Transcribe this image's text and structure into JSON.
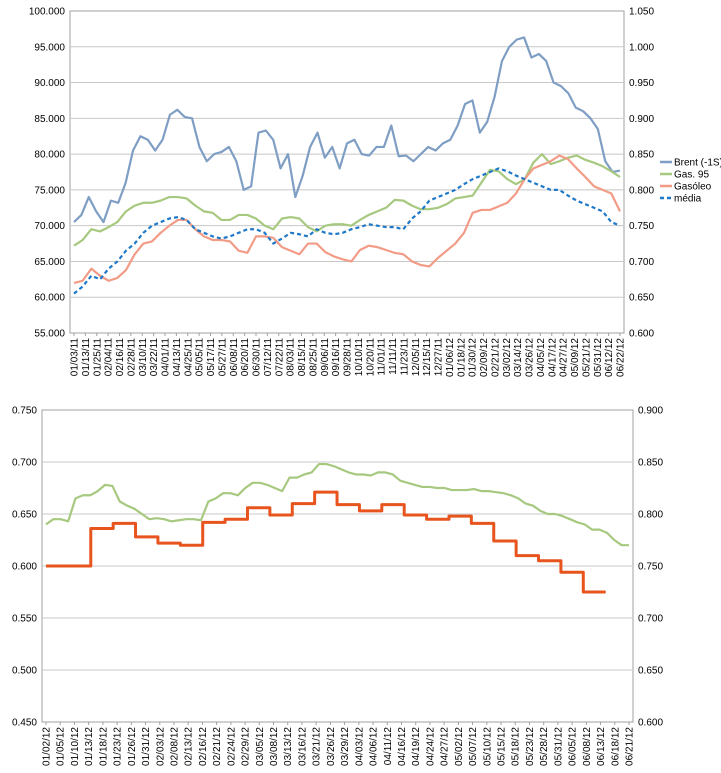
{
  "chart_data": [
    {
      "type": "line",
      "y_left_ticks": [
        "55.000",
        "60.000",
        "65.000",
        "70.000",
        "75.000",
        "80.000",
        "85.000",
        "90.000",
        "95.000",
        "100.000"
      ],
      "y_right_ticks": [
        "0.600",
        "0.650",
        "0.700",
        "0.750",
        "0.800",
        "0.850",
        "0.900",
        "0.950",
        "1.000",
        "1.050"
      ],
      "ylim_left": [
        55,
        100
      ],
      "ylim_right": [
        0.6,
        1.05
      ],
      "grid": true,
      "legend_position": "right",
      "x_labels": [
        "01/03/11",
        "01/13/11",
        "01/25/11",
        "02/04/11",
        "02/16/11",
        "02/28/11",
        "03/10/11",
        "03/22/11",
        "04/01/11",
        "04/13/11",
        "04/25/11",
        "05/05/11",
        "05/17/11",
        "05/27/11",
        "06/08/11",
        "06/20/11",
        "06/30/11",
        "07/12/11",
        "07/22/11",
        "08/03/11",
        "08/15/11",
        "08/25/11",
        "09/06/11",
        "09/16/11",
        "09/28/11",
        "10/10/11",
        "10/20/11",
        "11/01/11",
        "11/11/11",
        "11/23/11",
        "12/05/11",
        "12/15/11",
        "12/27/11",
        "01/06/12",
        "01/18/12",
        "01/30/12",
        "02/09/12",
        "02/21/12",
        "03/02/12",
        "03/14/12",
        "03/26/12",
        "04/05/12",
        "04/17/12",
        "04/27/12",
        "05/09/12",
        "05/21/12",
        "05/31/12",
        "06/12/12",
        "06/22/12"
      ],
      "series": [
        {
          "name": "Brent (-1S)",
          "axis": "left",
          "color": "#7f9ec4",
          "dash": "",
          "values": [
            70.5,
            71.5,
            74,
            72,
            70.5,
            73.5,
            73.2,
            76,
            80.5,
            82.5,
            82,
            80.5,
            82,
            85.5,
            86.2,
            85.2,
            85,
            81,
            79,
            80,
            80.3,
            81,
            79,
            75,
            75.5,
            83,
            83.3,
            82,
            78,
            80,
            74,
            77,
            81,
            83,
            79.5,
            81,
            78,
            81.5,
            82,
            80,
            79.8,
            81,
            81,
            84,
            79.7,
            79.8,
            79,
            80,
            81,
            80.5,
            81.5,
            82,
            84,
            87,
            87.5,
            83,
            84.5,
            88,
            93,
            95,
            96,
            96.3,
            93.5,
            94,
            93,
            90,
            89.5,
            88.5,
            86.5,
            86,
            85,
            83.5,
            79,
            77.5,
            77.7
          ]
        },
        {
          "name": "Gas. 95",
          "axis": "right",
          "color": "#a6c97f",
          "dash": "",
          "values": [
            0.722,
            0.73,
            0.745,
            0.742,
            0.748,
            0.755,
            0.77,
            0.778,
            0.782,
            0.782,
            0.785,
            0.79,
            0.79,
            0.788,
            0.778,
            0.77,
            0.768,
            0.758,
            0.758,
            0.765,
            0.765,
            0.76,
            0.75,
            0.745,
            0.76,
            0.762,
            0.76,
            0.748,
            0.742,
            0.75,
            0.752,
            0.752,
            0.75,
            0.758,
            0.765,
            0.77,
            0.775,
            0.786,
            0.785,
            0.778,
            0.773,
            0.773,
            0.775,
            0.78,
            0.788,
            0.79,
            0.792,
            0.81,
            0.828,
            0.826,
            0.815,
            0.808,
            0.815,
            0.838,
            0.85,
            0.836,
            0.84,
            0.845,
            0.848,
            0.842,
            0.838,
            0.833,
            0.826,
            0.818
          ]
        },
        {
          "name": "Gasóleo",
          "axis": "right",
          "color": "#f29c87",
          "dash": "",
          "values": [
            0.67,
            0.673,
            0.69,
            0.68,
            0.673,
            0.677,
            0.688,
            0.71,
            0.725,
            0.728,
            0.74,
            0.75,
            0.758,
            0.758,
            0.745,
            0.735,
            0.73,
            0.73,
            0.728,
            0.715,
            0.712,
            0.735,
            0.735,
            0.733,
            0.72,
            0.715,
            0.71,
            0.725,
            0.725,
            0.713,
            0.707,
            0.703,
            0.7,
            0.716,
            0.722,
            0.72,
            0.716,
            0.712,
            0.71,
            0.7,
            0.695,
            0.693,
            0.705,
            0.715,
            0.725,
            0.74,
            0.768,
            0.772,
            0.772,
            0.777,
            0.782,
            0.795,
            0.815,
            0.83,
            0.835,
            0.84,
            0.848,
            0.843,
            0.83,
            0.818,
            0.805,
            0.8,
            0.795,
            0.77
          ]
        },
        {
          "name": "média",
          "axis": "right",
          "color": "#1f78c8",
          "dash": "4,3",
          "values": [
            0.655,
            0.665,
            0.68,
            0.675,
            0.69,
            0.7,
            0.715,
            0.725,
            0.74,
            0.75,
            0.755,
            0.76,
            0.762,
            0.758,
            0.745,
            0.74,
            0.735,
            0.732,
            0.735,
            0.74,
            0.745,
            0.745,
            0.74,
            0.725,
            0.732,
            0.74,
            0.738,
            0.735,
            0.745,
            0.74,
            0.738,
            0.74,
            0.745,
            0.748,
            0.752,
            0.75,
            0.748,
            0.748,
            0.745,
            0.76,
            0.77,
            0.785,
            0.79,
            0.795,
            0.8,
            0.808,
            0.815,
            0.82,
            0.825,
            0.83,
            0.826,
            0.82,
            0.815,
            0.81,
            0.805,
            0.8,
            0.8,
            0.792,
            0.785,
            0.78,
            0.775,
            0.77,
            0.755,
            0.75
          ]
        }
      ]
    },
    {
      "type": "line",
      "y_left_ticks": [
        "0.450",
        "0.500",
        "0.550",
        "0.600",
        "0.650",
        "0.700",
        "0.750"
      ],
      "y_right_ticks": [
        "0.600",
        "0.650",
        "0.700",
        "0.750",
        "0.800",
        "0.850",
        "0.900"
      ],
      "ylim_left": [
        0.45,
        0.75
      ],
      "ylim_right": [
        0.6,
        0.9
      ],
      "grid": true,
      "x_labels": [
        "01/02/12",
        "01/05/12",
        "01/10/12",
        "01/13/12",
        "01/18/12",
        "01/23/12",
        "01/26/12",
        "01/31/12",
        "02/03/12",
        "02/08/12",
        "02/13/12",
        "02/16/12",
        "02/21/12",
        "02/24/12",
        "02/29/12",
        "03/05/12",
        "03/08/12",
        "03/13/12",
        "03/16/12",
        "03/21/12",
        "03/26/12",
        "03/29/12",
        "04/03/12",
        "04/06/12",
        "04/11/12",
        "04/16/12",
        "04/19/12",
        "04/24/12",
        "04/27/12",
        "05/02/12",
        "05/07/12",
        "05/10/12",
        "05/15/12",
        "05/18/12",
        "05/23/12",
        "05/28/12",
        "05/31/12",
        "06/05/12",
        "06/08/12",
        "06/13/12",
        "06/18/12",
        "06/21/12"
      ],
      "series": [
        {
          "axis": "right",
          "color": "#a6c97f",
          "step": false,
          "values": [
            0.79,
            0.795,
            0.795,
            0.793,
            0.815,
            0.818,
            0.818,
            0.822,
            0.828,
            0.827,
            0.812,
            0.808,
            0.805,
            0.8,
            0.795,
            0.796,
            0.795,
            0.793,
            0.794,
            0.795,
            0.795,
            0.794,
            0.812,
            0.815,
            0.82,
            0.82,
            0.818,
            0.825,
            0.83,
            0.83,
            0.828,
            0.825,
            0.822,
            0.835,
            0.835,
            0.838,
            0.84,
            0.848,
            0.848,
            0.846,
            0.843,
            0.84,
            0.838,
            0.838,
            0.837,
            0.84,
            0.84,
            0.838,
            0.832,
            0.83,
            0.828,
            0.826,
            0.826,
            0.825,
            0.825,
            0.823,
            0.823,
            0.823,
            0.824,
            0.822,
            0.822,
            0.821,
            0.82,
            0.818,
            0.815,
            0.81,
            0.808,
            0.803,
            0.8,
            0.8,
            0.798,
            0.795,
            0.792,
            0.79,
            0.785,
            0.785,
            0.782,
            0.775,
            0.77,
            0.77
          ]
        },
        {
          "axis": "left",
          "color": "#e8541e",
          "step": true,
          "values": [
            0.6,
            0.6,
            0.636,
            0.641,
            0.628,
            0.622,
            0.62,
            0.642,
            0.645,
            0.656,
            0.649,
            0.66,
            0.671,
            0.659,
            0.653,
            0.659,
            0.649,
            0.645,
            0.648,
            0.641,
            0.624,
            0.61,
            0.605,
            0.594,
            0.575,
            0.575
          ]
        }
      ]
    }
  ]
}
